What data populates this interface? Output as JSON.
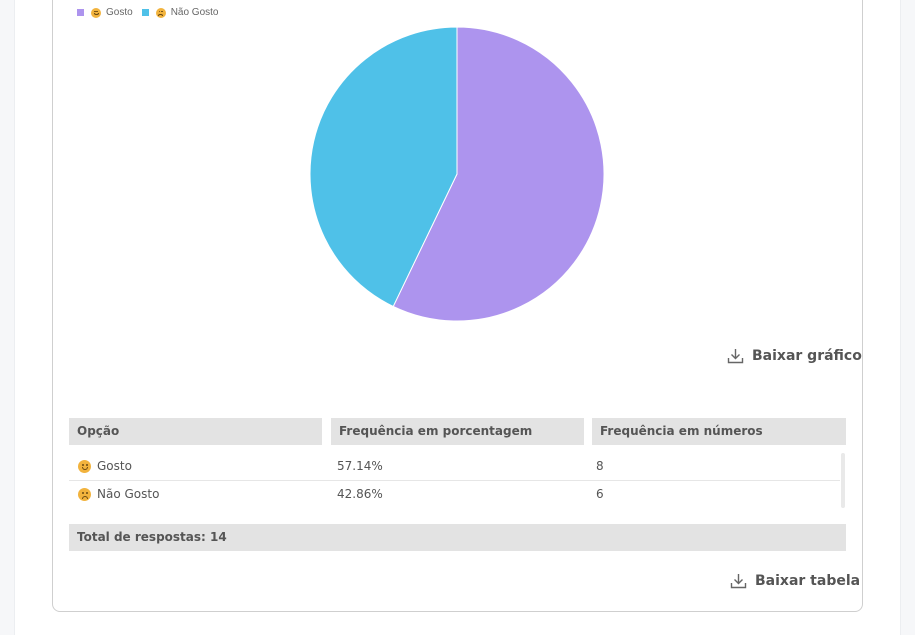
{
  "legend": [
    {
      "label": "Gosto",
      "color": "#ad94ee",
      "mood": "happy"
    },
    {
      "label": "Não Gosto",
      "color": "#4fc1e8",
      "mood": "sad"
    }
  ],
  "chart_data": {
    "type": "pie",
    "categories": [
      "Gosto",
      "Não Gosto"
    ],
    "values": [
      8,
      6
    ],
    "colors": [
      "#ad94ee",
      "#4fc1e8"
    ],
    "legend_position": "top-left"
  },
  "chart_download_label": "Baixar gráfico",
  "table": {
    "headers": [
      "Opção",
      "Frequência em porcentagem",
      "Frequência em números"
    ],
    "rows": [
      {
        "option": "Gosto",
        "mood": "happy",
        "percent": "57.14%",
        "count": "8"
      },
      {
        "option": "Não Gosto",
        "mood": "sad",
        "percent": "42.86%",
        "count": "6"
      }
    ],
    "total_label": "Total de respostas: 14"
  },
  "table_download_label": "Baixar tabela",
  "icons": {
    "download": "download-icon",
    "happy": "smiling-face-icon",
    "sad": "frowning-face-icon"
  }
}
